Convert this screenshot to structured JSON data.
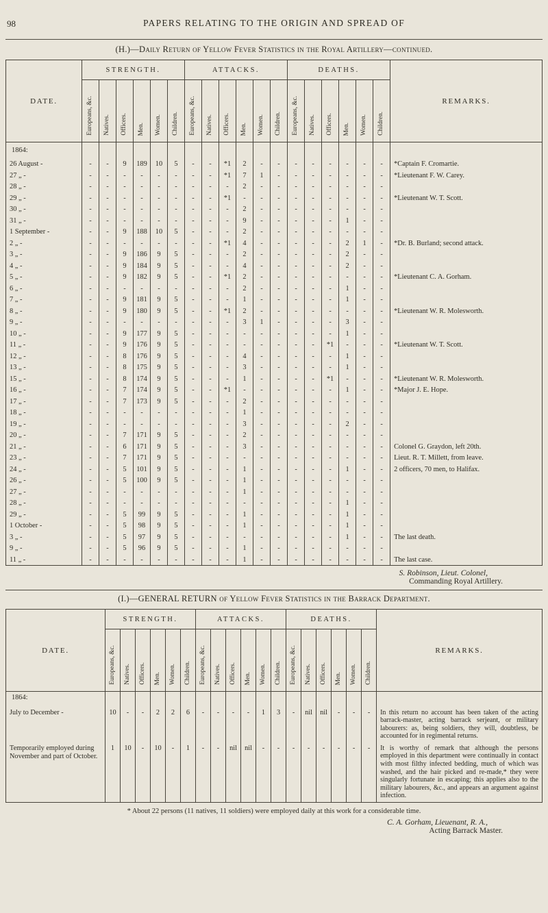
{
  "page": {
    "number": "98",
    "running_header": "PAPERS RELATING TO THE ORIGIN AND SPREAD OF"
  },
  "headers": {
    "date": "DATE.",
    "remarks": "REMARKS.",
    "groups": [
      "STRENGTH.",
      "ATTACKS.",
      "DEATHS."
    ],
    "sub": [
      "Europeans, &c.",
      "Natives.",
      "Officers.",
      "Men.",
      "Women.",
      "Children."
    ]
  },
  "table_h": {
    "title": "(H.)—Daily Return of Yellow Fever Statistics in the Royal Artillery—continued.",
    "year": "1864:",
    "rows": [
      {
        "date": "26 August -",
        "cells": [
          "-",
          "-",
          "9",
          "189",
          "10",
          "5",
          "-",
          "-",
          "*1",
          "2",
          "-",
          "-",
          "-",
          "-",
          "-",
          "-",
          "-",
          "-"
        ],
        "remarks": "*Captain F. Cromartie."
      },
      {
        "date": "27 „ -",
        "cells": [
          "-",
          "-",
          "-",
          "-",
          "-",
          "-",
          "-",
          "-",
          "*1",
          "7",
          "1",
          "-",
          "-",
          "-",
          "-",
          "-",
          "-",
          "-"
        ],
        "remarks": "*Lieutenant F. W. Carey."
      },
      {
        "date": "28 „ -",
        "cells": [
          "-",
          "-",
          "-",
          "-",
          "-",
          "-",
          "-",
          "-",
          "-",
          "2",
          "-",
          "-",
          "-",
          "-",
          "-",
          "-",
          "-",
          "-"
        ],
        "remarks": ""
      },
      {
        "date": "29 „ -",
        "cells": [
          "-",
          "-",
          "-",
          "-",
          "-",
          "-",
          "-",
          "-",
          "*1",
          "-",
          "-",
          "-",
          "-",
          "-",
          "-",
          "-",
          "-",
          "-"
        ],
        "remarks": "*Lieutenant W. T. Scott."
      },
      {
        "date": "30 „ -",
        "cells": [
          "-",
          "-",
          "-",
          "-",
          "-",
          "-",
          "-",
          "-",
          "-",
          "2",
          "-",
          "-",
          "-",
          "-",
          "-",
          "-",
          "-",
          "-"
        ],
        "remarks": ""
      },
      {
        "date": "31 „ -",
        "cells": [
          "-",
          "-",
          "-",
          "-",
          "-",
          "-",
          "-",
          "-",
          "-",
          "9",
          "-",
          "-",
          "-",
          "-",
          "-",
          "1",
          "-",
          "-"
        ],
        "remarks": ""
      },
      {
        "date": "1 September -",
        "cells": [
          "-",
          "-",
          "9",
          "188",
          "10",
          "5",
          "-",
          "-",
          "-",
          "2",
          "-",
          "-",
          "-",
          "-",
          "-",
          "-",
          "-",
          "-"
        ],
        "remarks": ""
      },
      {
        "date": "2 „ -",
        "cells": [
          "-",
          "-",
          "-",
          "-",
          "-",
          "-",
          "-",
          "-",
          "*1",
          "4",
          "-",
          "-",
          "-",
          "-",
          "-",
          "2",
          "1",
          "-"
        ],
        "remarks": "*Dr. B. Burland; second attack."
      },
      {
        "date": "3 „ -",
        "cells": [
          "-",
          "-",
          "9",
          "186",
          "9",
          "5",
          "-",
          "-",
          "-",
          "2",
          "-",
          "-",
          "-",
          "-",
          "-",
          "2",
          "-",
          "-"
        ],
        "remarks": ""
      },
      {
        "date": "4 „ -",
        "cells": [
          "-",
          "-",
          "9",
          "184",
          "9",
          "5",
          "-",
          "-",
          "-",
          "4",
          "-",
          "-",
          "-",
          "-",
          "-",
          "2",
          "-",
          "-"
        ],
        "remarks": ""
      },
      {
        "date": "5 „ -",
        "cells": [
          "-",
          "-",
          "9",
          "182",
          "9",
          "5",
          "-",
          "-",
          "*1",
          "2",
          "-",
          "-",
          "-",
          "-",
          "-",
          "-",
          "-",
          "-"
        ],
        "remarks": "*Lieutenant C. A. Gorham."
      },
      {
        "date": "6 „ -",
        "cells": [
          "-",
          "-",
          "-",
          "-",
          "-",
          "-",
          "-",
          "-",
          "-",
          "2",
          "-",
          "-",
          "-",
          "-",
          "-",
          "1",
          "-",
          "-"
        ],
        "remarks": ""
      },
      {
        "date": "7 „ -",
        "cells": [
          "-",
          "-",
          "9",
          "181",
          "9",
          "5",
          "-",
          "-",
          "-",
          "1",
          "-",
          "-",
          "-",
          "-",
          "-",
          "1",
          "-",
          "-"
        ],
        "remarks": ""
      },
      {
        "date": "8 „ -",
        "cells": [
          "-",
          "-",
          "9",
          "180",
          "9",
          "5",
          "-",
          "-",
          "*1",
          "2",
          "-",
          "-",
          "-",
          "-",
          "-",
          "-",
          "-",
          "-"
        ],
        "remarks": "*Lieutenant W. R. Molesworth."
      },
      {
        "date": "9 „ -",
        "cells": [
          "-",
          "-",
          "-",
          "-",
          "-",
          "-",
          "-",
          "-",
          "-",
          "3",
          "1",
          "-",
          "-",
          "-",
          "-",
          "3",
          "-",
          "-"
        ],
        "remarks": ""
      },
      {
        "date": "10 „ -",
        "cells": [
          "-",
          "-",
          "9",
          "177",
          "9",
          "5",
          "-",
          "-",
          "-",
          "-",
          "-",
          "-",
          "-",
          "-",
          "-",
          "1",
          "-",
          "-"
        ],
        "remarks": ""
      },
      {
        "date": "11 „ -",
        "cells": [
          "-",
          "-",
          "9",
          "176",
          "9",
          "5",
          "-",
          "-",
          "-",
          "-",
          "-",
          "-",
          "-",
          "-",
          "*1",
          "-",
          "-",
          "-"
        ],
        "remarks": "*Lieutenant W. T. Scott."
      },
      {
        "date": "12 „ -",
        "cells": [
          "-",
          "-",
          "8",
          "176",
          "9",
          "5",
          "-",
          "-",
          "-",
          "4",
          "-",
          "-",
          "-",
          "-",
          "-",
          "1",
          "-",
          "-"
        ],
        "remarks": ""
      },
      {
        "date": "13 „ -",
        "cells": [
          "-",
          "-",
          "8",
          "175",
          "9",
          "5",
          "-",
          "-",
          "-",
          "3",
          "-",
          "-",
          "-",
          "-",
          "-",
          "1",
          "-",
          "-"
        ],
        "remarks": ""
      },
      {
        "date": "15 „ -",
        "cells": [
          "-",
          "-",
          "8",
          "174",
          "9",
          "5",
          "-",
          "-",
          "-",
          "1",
          "-",
          "-",
          "-",
          "-",
          "*1",
          "-",
          "-",
          "-"
        ],
        "remarks": "*Lieutenant W. R. Molesworth."
      },
      {
        "date": "16 „ -",
        "cells": [
          "-",
          "-",
          "7",
          "174",
          "9",
          "5",
          "-",
          "-",
          "*1",
          "-",
          "-",
          "-",
          "-",
          "-",
          "-",
          "1",
          "-",
          "-"
        ],
        "remarks": "*Major J. E. Hope."
      },
      {
        "date": "17 „ -",
        "cells": [
          "-",
          "-",
          "7",
          "173",
          "9",
          "5",
          "-",
          "-",
          "-",
          "2",
          "-",
          "-",
          "-",
          "-",
          "-",
          "-",
          "-",
          "-"
        ],
        "remarks": ""
      },
      {
        "date": "18 „ -",
        "cells": [
          "-",
          "-",
          "-",
          "-",
          "-",
          "-",
          "-",
          "-",
          "-",
          "1",
          "-",
          "-",
          "-",
          "-",
          "-",
          "-",
          "-",
          "-"
        ],
        "remarks": ""
      },
      {
        "date": "19 „ -",
        "cells": [
          "-",
          "-",
          "-",
          "-",
          "-",
          "-",
          "-",
          "-",
          "-",
          "3",
          "-",
          "-",
          "-",
          "-",
          "-",
          "2",
          "-",
          "-"
        ],
        "remarks": ""
      },
      {
        "date": "20 „ -",
        "cells": [
          "-",
          "-",
          "7",
          "171",
          "9",
          "5",
          "-",
          "-",
          "-",
          "2",
          "-",
          "-",
          "-",
          "-",
          "-",
          "-",
          "-",
          "-"
        ],
        "remarks": ""
      },
      {
        "date": "21 „ -",
        "cells": [
          "-",
          "-",
          "6",
          "171",
          "9",
          "5",
          "-",
          "-",
          "-",
          "3",
          "-",
          "-",
          "-",
          "-",
          "-",
          "-",
          "-",
          "-"
        ],
        "remarks": "Colonel G. Graydon, left 20th."
      },
      {
        "date": "23 „ -",
        "cells": [
          "-",
          "-",
          "7",
          "171",
          "9",
          "5",
          "-",
          "-",
          "-",
          "-",
          "-",
          "-",
          "-",
          "-",
          "-",
          "-",
          "-",
          "-"
        ],
        "remarks": "Lieut. R. T. Millett, from leave."
      },
      {
        "date": "24 „ -",
        "cells": [
          "-",
          "-",
          "5",
          "101",
          "9",
          "5",
          "-",
          "-",
          "-",
          "1",
          "-",
          "-",
          "-",
          "-",
          "-",
          "1",
          "-",
          "-"
        ],
        "remarks": "2 officers, 70 men, to Halifax."
      },
      {
        "date": "26 „ -",
        "cells": [
          "-",
          "-",
          "5",
          "100",
          "9",
          "5",
          "-",
          "-",
          "-",
          "1",
          "-",
          "-",
          "-",
          "-",
          "-",
          "-",
          "-",
          "-"
        ],
        "remarks": ""
      },
      {
        "date": "27 „ -",
        "cells": [
          "-",
          "-",
          "-",
          "-",
          "-",
          "-",
          "-",
          "-",
          "-",
          "1",
          "-",
          "-",
          "-",
          "-",
          "-",
          "-",
          "-",
          "-"
        ],
        "remarks": ""
      },
      {
        "date": "28 „ -",
        "cells": [
          "-",
          "-",
          "-",
          "-",
          "-",
          "-",
          "-",
          "-",
          "-",
          "-",
          "-",
          "-",
          "-",
          "-",
          "-",
          "1",
          "-",
          "-"
        ],
        "remarks": ""
      },
      {
        "date": "29 „ -",
        "cells": [
          "-",
          "-",
          "5",
          "99",
          "9",
          "5",
          "-",
          "-",
          "-",
          "1",
          "-",
          "-",
          "-",
          "-",
          "-",
          "1",
          "-",
          "-"
        ],
        "remarks": ""
      },
      {
        "date": "1 October -",
        "cells": [
          "-",
          "-",
          "5",
          "98",
          "9",
          "5",
          "-",
          "-",
          "-",
          "1",
          "-",
          "-",
          "-",
          "-",
          "-",
          "1",
          "-",
          "-"
        ],
        "remarks": ""
      },
      {
        "date": "3 „ -",
        "cells": [
          "-",
          "-",
          "5",
          "97",
          "9",
          "5",
          "-",
          "-",
          "-",
          "-",
          "-",
          "-",
          "-",
          "-",
          "-",
          "1",
          "-",
          "-"
        ],
        "remarks": "The last death."
      },
      {
        "date": "9 „ -",
        "cells": [
          "-",
          "-",
          "5",
          "96",
          "9",
          "5",
          "-",
          "-",
          "-",
          "1",
          "-",
          "-",
          "-",
          "-",
          "-",
          "-",
          "-",
          "-"
        ],
        "remarks": ""
      },
      {
        "date": "11 „ -",
        "cells": [
          "-",
          "-",
          "-",
          "-",
          "-",
          "-",
          "-",
          "-",
          "-",
          "1",
          "-",
          "-",
          "-",
          "-",
          "-",
          "-",
          "-",
          "-"
        ],
        "remarks": "The last case."
      }
    ],
    "signature": {
      "line1": "S. Robinson, Lieut. Colonel,",
      "line2": "Commanding Royal Artillery."
    }
  },
  "table_i": {
    "title": "(I.)—GENERAL RETURN of Yellow Fever Statistics in the Barrack Department.",
    "year": "1864:",
    "rows": [
      {
        "date": "July to December -",
        "cells": [
          "10",
          "-",
          "-",
          "2",
          "2",
          "6",
          "-",
          "-",
          "-",
          "-",
          "1",
          "3",
          "-",
          "nil",
          "nil",
          "-",
          "-",
          "-"
        ],
        "remarks": "In this return no account has been taken of the acting barrack-master, acting barrack serjeant, or military labourers: as, being soldiers, they will, doubtless, be accounted for in regimental returns."
      },
      {
        "date": "Temporarily employed during November and part of October.",
        "cells": [
          "1",
          "10",
          "-",
          "10",
          "-",
          "1",
          "-",
          "-",
          "nil",
          "nil",
          "-",
          "-",
          "-",
          "-",
          "-",
          "-",
          "-",
          "-"
        ],
        "remarks": "It is worthy of remark that although the persons employed in this department were continually in contact with most filthy infected bedding, much of which was washed, and the hair picked and re-made,* they were singularly fortunate in escaping; this applies also to the military labourers, &c., and appears an argument against infection."
      }
    ],
    "footnote": "* About 22 persons (11 natives, 11 soldiers) were employed daily at this work for a considerable time.",
    "signature": {
      "line1": "C. A. Gorham, Lieuenant, R. A.,",
      "line2": "Acting Barrack Master."
    }
  }
}
